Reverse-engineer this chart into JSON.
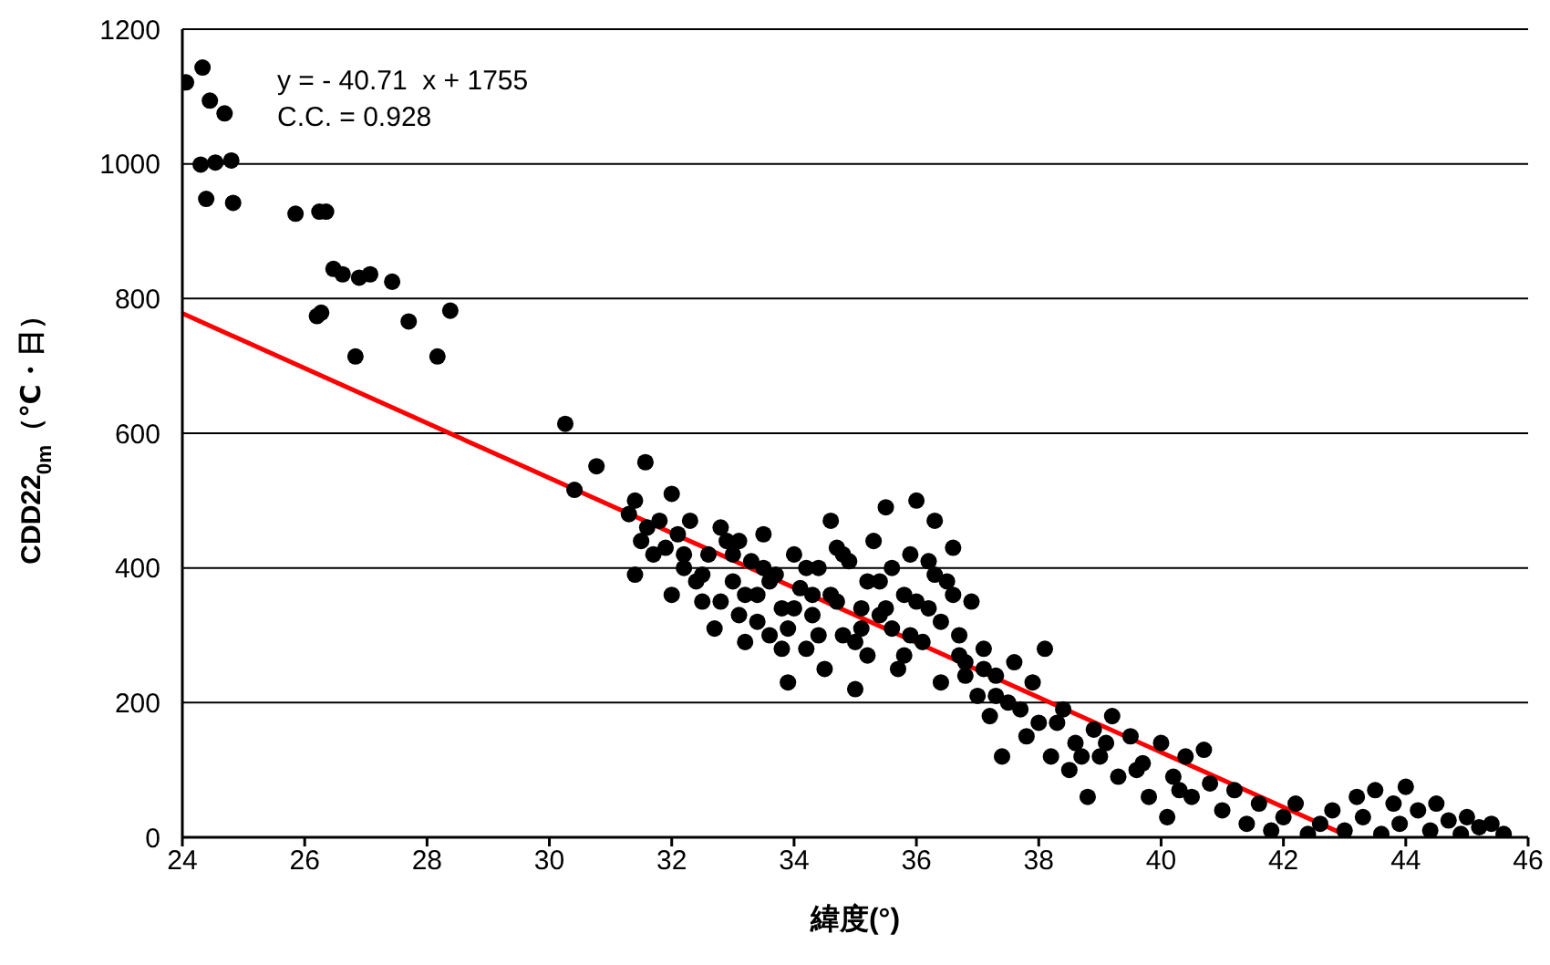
{
  "chart_data": {
    "type": "scatter",
    "xlabel": "緯度(°)",
    "ylabel": "CDD22$_{0m}$（℃・日）",
    "xlim": [
      24,
      46
    ],
    "xticks": [
      24,
      26,
      28,
      30,
      32,
      34,
      36,
      38,
      40,
      42,
      44,
      46
    ],
    "ylim": [
      0,
      1200
    ],
    "yticks": [
      0,
      200,
      400,
      600,
      800,
      1000,
      1200
    ],
    "grid": "y",
    "legend": false,
    "annotations": [
      "y = - 40.71  x + 1755",
      "C.C. = 0.928"
    ],
    "series": [
      {
        "marker": "circle",
        "color": "#000000",
        "x": [
          32.2,
          32.5,
          32.8,
          33.0,
          33.2,
          33.4,
          33.6,
          33.8,
          34.0,
          34.2,
          34.4,
          34.6,
          34.8,
          35.0,
          35.2,
          35.4,
          35.6,
          35.8,
          36.0,
          36.2,
          36.4,
          36.6,
          36.8,
          33.1,
          33.5,
          33.9,
          34.3,
          34.7,
          35.1,
          35.5,
          35.9,
          36.3,
          36.7,
          37.1,
          37.3,
          37.7,
          38.3,
          38.7,
          39.1,
          39.6,
          40.3,
          24.06,
          24.33,
          24.45,
          24.69,
          24.3,
          24.54,
          24.8,
          24.39,
          24.83,
          25.85,
          26.24,
          26.35,
          26.47,
          26.62,
          26.89,
          27.07,
          27.43,
          26.2,
          26.27,
          27.7,
          28.38,
          26.83,
          28.17,
          30.26,
          30.41,
          30.77,
          31.57,
          31.3,
          31.4,
          31.5,
          31.6,
          31.4,
          31.7,
          31.8,
          31.9,
          32.0,
          32.1,
          32.2,
          32.3,
          32.0,
          32.4,
          32.5,
          32.6,
          32.7,
          32.8,
          32.9,
          33.0,
          33.1,
          33.2,
          33.3,
          33.4,
          33.5,
          33.6,
          33.7,
          33.8,
          33.9,
          34.0,
          34.1,
          34.2,
          34.3,
          34.4,
          34.5,
          34.6,
          34.7,
          34.8,
          34.9,
          35.0,
          35.1,
          35.2,
          35.3,
          35.4,
          35.5,
          35.6,
          35.7,
          35.8,
          35.9,
          36.0,
          36.1,
          36.2,
          36.3,
          36.4,
          36.5,
          36.6,
          36.7,
          36.8,
          36.9,
          37.0,
          37.1,
          37.2,
          37.3,
          37.4,
          37.5,
          37.6,
          37.8,
          37.9,
          38.0,
          38.1,
          38.2,
          38.4,
          38.5,
          38.6,
          38.8,
          38.9,
          39.0,
          39.2,
          39.3,
          39.5,
          39.7,
          39.8,
          40.0,
          40.1,
          40.2,
          40.4,
          40.5,
          40.7,
          40.8,
          41.0,
          41.2,
          41.4,
          41.6,
          41.8,
          42.0,
          42.2,
          42.4,
          42.6,
          42.8,
          43.0,
          43.2,
          43.3,
          43.5,
          43.6,
          43.8,
          43.9,
          44.0,
          44.2,
          44.4,
          44.5,
          44.7,
          44.9,
          45.0,
          45.2,
          45.4,
          45.6
        ],
        "values": [
          420,
          390,
          350,
          420,
          360,
          320,
          380,
          280,
          340,
          400,
          300,
          360,
          420,
          290,
          380,
          330,
          400,
          270,
          350,
          410,
          320,
          360,
          240,
          440,
          400,
          310,
          360,
          430,
          310,
          340,
          300,
          390,
          270,
          250,
          210,
          190,
          170,
          120,
          140,
          100,
          70,
          1121,
          1143,
          1094,
          1075,
          999,
          1002,
          1005,
          948,
          942,
          926,
          929,
          929,
          844,
          836,
          831,
          836,
          825,
          774,
          779,
          766,
          782,
          714,
          714,
          614,
          516,
          551,
          557,
          480,
          500,
          440,
          460,
          390,
          420,
          470,
          430,
          510,
          450,
          400,
          470,
          360,
          380,
          350,
          420,
          310,
          460,
          440,
          380,
          330,
          290,
          410,
          360,
          450,
          300,
          390,
          340,
          230,
          420,
          370,
          280,
          330,
          400,
          250,
          470,
          350,
          300,
          410,
          220,
          340,
          270,
          440,
          380,
          490,
          310,
          250,
          360,
          420,
          500,
          290,
          340,
          470,
          230,
          380,
          430,
          300,
          260,
          350,
          210,
          280,
          180,
          240,
          120,
          200,
          260,
          150,
          230,
          170,
          280,
          120,
          190,
          100,
          140,
          60,
          160,
          120,
          180,
          90,
          150,
          110,
          60,
          140,
          30,
          90,
          120,
          60,
          130,
          80,
          40,
          70,
          20,
          50,
          10,
          30,
          50,
          5,
          20,
          40,
          10,
          60,
          30,
          70,
          5,
          50,
          20,
          75,
          40,
          10,
          50,
          25,
          5,
          30,
          15,
          20,
          5
        ]
      },
      {
        "type": "line",
        "marker": "none",
        "color": "#ff0000",
        "x": [
          24,
          43.1
        ],
        "values": [
          778,
          0
        ]
      }
    ]
  }
}
